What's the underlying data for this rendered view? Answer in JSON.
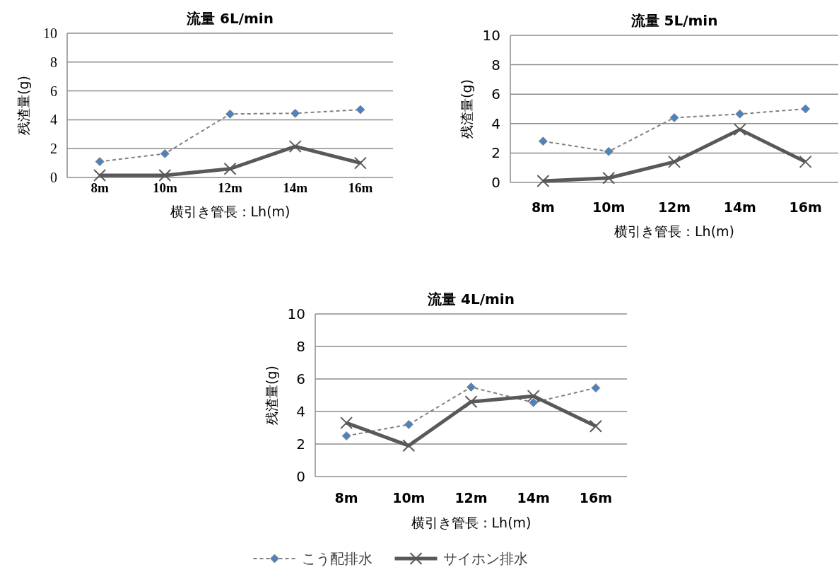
{
  "chart_data": [
    {
      "type": "line",
      "title": "流量 6L/min",
      "xlabel": "横引き管長：Lh(m)",
      "ylabel": "残渣量(g)",
      "categories": [
        "8m",
        "10m",
        "12m",
        "14m",
        "16m"
      ],
      "ylim": [
        0,
        10
      ],
      "yticks": [
        0,
        2,
        4,
        6,
        8,
        10
      ],
      "grid": "y",
      "series": [
        {
          "color": "#4f81bd",
          "marker": "diamond",
          "line_style": "dashed",
          "values": [
            1.1,
            1.65,
            4.4,
            4.45,
            4.7
          ]
        },
        {
          "color": "#595959",
          "marker": "cross",
          "line_style": "solid",
          "values": [
            0.15,
            0.15,
            0.6,
            2.15,
            1.0
          ]
        }
      ]
    },
    {
      "type": "line",
      "title": "流量 5L/min",
      "xlabel": "横引き管長：Lh(m)",
      "ylabel": "残渣量(g)",
      "categories": [
        "8m",
        "10m",
        "12m",
        "14m",
        "16m"
      ],
      "ylim": [
        0,
        10
      ],
      "yticks": [
        0,
        2,
        4,
        6,
        8,
        10
      ],
      "grid": "y",
      "series": [
        {
          "color": "#4f81bd",
          "marker": "diamond",
          "line_style": "dashed",
          "values": [
            2.8,
            2.1,
            4.4,
            4.65,
            5.0
          ]
        },
        {
          "color": "#595959",
          "marker": "cross",
          "line_style": "solid",
          "values": [
            0.1,
            0.3,
            1.4,
            3.6,
            1.4
          ]
        }
      ]
    },
    {
      "type": "line",
      "title": "流量 4L/min",
      "xlabel": "横引き管長：Lh(m)",
      "ylabel": "残渣量(g)",
      "categories": [
        "8m",
        "10m",
        "12m",
        "14m",
        "16m"
      ],
      "ylim": [
        0,
        10
      ],
      "yticks": [
        0,
        2,
        4,
        6,
        8,
        10
      ],
      "grid": "y",
      "legend": "bottom",
      "series": [
        {
          "name": "こう配排水",
          "color": "#4f81bd",
          "marker": "diamond",
          "line_style": "dashed",
          "values": [
            2.5,
            3.2,
            5.5,
            4.55,
            5.45
          ]
        },
        {
          "name": "サイホン排水",
          "color": "#595959",
          "marker": "cross",
          "line_style": "solid",
          "values": [
            3.3,
            1.9,
            4.6,
            4.95,
            3.1
          ]
        }
      ]
    }
  ]
}
